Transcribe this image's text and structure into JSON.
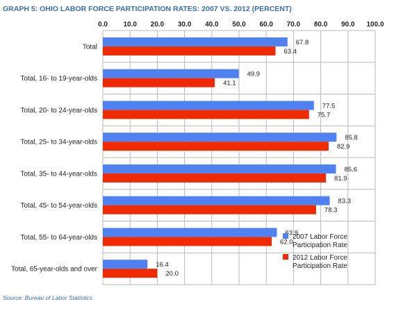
{
  "title": "GRAPH 5: OHIO LABOR FORCE PARTICIPATION RATES:  2007 VS. 2012 (PERCENT)",
  "source": "Source: Bureau of Labor Statistics",
  "chart_data": {
    "type": "bar",
    "orientation": "horizontal",
    "title": "GRAPH 5: OHIO LABOR FORCE PARTICIPATION RATES:  2007 VS. 2012 (PERCENT)",
    "categories": [
      "Total",
      "Total, 16- to 19-year-olds",
      "Total, 20- to 24-year-olds",
      "Total, 25- to 34-year-olds",
      "Total, 35- to 44-year-olds",
      "Total, 45- to 54-year-olds",
      "Total, 55- to 64-year-olds",
      "Total, 65-year-olds and over"
    ],
    "series": [
      {
        "name_lines": [
          "2007 Labor Force",
          "Participation Rate"
        ],
        "color": "#4f81f0",
        "values": [
          67.8,
          49.9,
          77.5,
          85.8,
          85.6,
          83.3,
          63.9,
          16.4
        ],
        "labels": [
          "67.8",
          "49.9",
          "77.5",
          "85.8",
          "85.6",
          "83.3",
          "63.9",
          "16.4"
        ]
      },
      {
        "name_lines": [
          "2012 Labor Force",
          "Participation Rate"
        ],
        "color": "#f02a00",
        "values": [
          63.4,
          41.1,
          75.7,
          82.9,
          81.9,
          78.3,
          62.0,
          20.0
        ],
        "labels": [
          "63.4",
          "41.1",
          "75.7",
          "82.9",
          "81.9",
          "78.3",
          "62.0",
          "20.0"
        ]
      }
    ],
    "xlim": [
      0,
      100
    ],
    "ticks": [
      0,
      10,
      20,
      30,
      40,
      50,
      60,
      70,
      80,
      90,
      100
    ],
    "tick_labels": [
      "0.0",
      "10.0",
      "20.0",
      "30.0",
      "40.0",
      "50.0",
      "60.0",
      "70.0",
      "80.0",
      "90.0",
      "100.0"
    ],
    "axis_position": "top",
    "grid": true,
    "legend_position": "bottom-right"
  }
}
